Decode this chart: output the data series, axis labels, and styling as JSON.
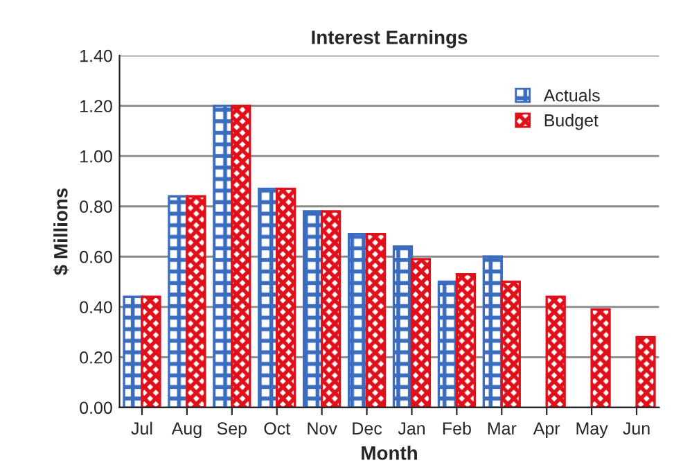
{
  "chart_data": {
    "type": "bar",
    "title": "Interest Earnings",
    "xlabel": "Month",
    "ylabel": "$ Millions",
    "categories": [
      "Jul",
      "Aug",
      "Sep",
      "Oct",
      "Nov",
      "Dec",
      "Jan",
      "Feb",
      "Mar",
      "Apr",
      "May",
      "Jun"
    ],
    "series": [
      {
        "name": "Actuals",
        "color": "#3a6cc0",
        "values": [
          0.44,
          0.84,
          1.2,
          0.87,
          0.78,
          0.69,
          0.64,
          0.5,
          0.6,
          null,
          null,
          null
        ]
      },
      {
        "name": "Budget",
        "color": "#e0101a",
        "values": [
          0.44,
          0.84,
          1.2,
          0.87,
          0.78,
          0.69,
          0.59,
          0.53,
          0.5,
          0.44,
          0.39,
          0.28
        ]
      }
    ],
    "ylim": [
      0,
      1.4
    ],
    "yticks": [
      {
        "value": 0,
        "label": "0.00"
      },
      {
        "value": 0.2,
        "label": "0.20"
      },
      {
        "value": 0.4,
        "label": "0.40"
      },
      {
        "value": 0.6,
        "label": "0.60"
      },
      {
        "value": 0.8,
        "label": "0.80"
      },
      {
        "value": 1.0,
        "label": "1.00"
      },
      {
        "value": 1.2,
        "label": "1.20"
      },
      {
        "value": 1.4,
        "label": "1.40"
      }
    ],
    "grid": "y",
    "legend": "top right"
  }
}
